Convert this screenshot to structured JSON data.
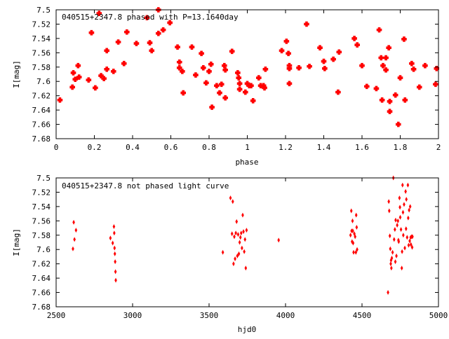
{
  "chart_data": [
    {
      "type": "scatter",
      "title": "040515+2347.8 phased with P=13.1640day",
      "xlabel": "phase",
      "ylabel": "I[mag]",
      "xlim": [
        0,
        2
      ],
      "ylim": [
        7.5,
        7.68
      ],
      "y_inverted": true,
      "grid": false,
      "marker_color": "#ff0000",
      "marker": "cross",
      "x_ticks": [
        "0",
        "0.2",
        "0.4",
        "0.6",
        "0.8",
        "1",
        "1.2",
        "1.4",
        "1.6",
        "1.8",
        "2"
      ],
      "y_ticks": [
        "7.5",
        "7.52",
        "7.54",
        "7.56",
        "7.58",
        "7.6",
        "7.62",
        "7.64",
        "7.66",
        "7.68"
      ],
      "points": [
        [
          0.02,
          7.626
        ],
        [
          0.085,
          7.608
        ],
        [
          0.09,
          7.588
        ],
        [
          0.1,
          7.597
        ],
        [
          0.115,
          7.578
        ],
        [
          0.12,
          7.594
        ],
        [
          0.17,
          7.598
        ],
        [
          0.185,
          7.532
        ],
        [
          0.205,
          7.609
        ],
        [
          0.225,
          7.505
        ],
        [
          0.235,
          7.592
        ],
        [
          0.25,
          7.596
        ],
        [
          0.265,
          7.583
        ],
        [
          0.265,
          7.557
        ],
        [
          0.3,
          7.586
        ],
        [
          0.325,
          7.545
        ],
        [
          0.355,
          7.575
        ],
        [
          0.37,
          7.531
        ],
        [
          0.42,
          7.547
        ],
        [
          0.475,
          7.511
        ],
        [
          0.49,
          7.546
        ],
        [
          0.5,
          7.557
        ],
        [
          0.535,
          7.5
        ],
        [
          0.535,
          7.533
        ],
        [
          0.56,
          7.528
        ],
        [
          0.595,
          7.518
        ],
        [
          0.635,
          7.552
        ],
        [
          0.645,
          7.573
        ],
        [
          0.645,
          7.581
        ],
        [
          0.66,
          7.586
        ],
        [
          0.665,
          7.616
        ],
        [
          0.71,
          7.552
        ],
        [
          0.73,
          7.591
        ],
        [
          0.76,
          7.561
        ],
        [
          0.77,
          7.581
        ],
        [
          0.785,
          7.602
        ],
        [
          0.8,
          7.586
        ],
        [
          0.81,
          7.576
        ],
        [
          0.815,
          7.636
        ],
        [
          0.84,
          7.606
        ],
        [
          0.855,
          7.616
        ],
        [
          0.865,
          7.604
        ],
        [
          0.88,
          7.578
        ],
        [
          0.885,
          7.584
        ],
        [
          0.885,
          7.623
        ],
        [
          0.92,
          7.558
        ],
        [
          0.95,
          7.588
        ],
        [
          0.955,
          7.595
        ],
        [
          0.96,
          7.611
        ],
        [
          0.96,
          7.603
        ],
        [
          0.99,
          7.615
        ],
        [
          1.0,
          7.603
        ],
        [
          1.01,
          7.606
        ],
        [
          1.02,
          7.606
        ],
        [
          1.03,
          7.627
        ],
        [
          1.06,
          7.595
        ],
        [
          1.07,
          7.606
        ],
        [
          1.085,
          7.606
        ],
        [
          1.09,
          7.609
        ],
        [
          1.095,
          7.583
        ],
        [
          1.18,
          7.557
        ],
        [
          1.205,
          7.544
        ],
        [
          1.215,
          7.561
        ],
        [
          1.22,
          7.578
        ],
        [
          1.22,
          7.582
        ],
        [
          1.22,
          7.603
        ],
        [
          1.27,
          7.581
        ],
        [
          1.31,
          7.52
        ],
        [
          1.325,
          7.579
        ],
        [
          1.38,
          7.553
        ],
        [
          1.4,
          7.572
        ],
        [
          1.405,
          7.582
        ],
        [
          1.45,
          7.569
        ],
        [
          1.475,
          7.615
        ],
        [
          1.48,
          7.559
        ],
        [
          1.56,
          7.54
        ],
        [
          1.575,
          7.549
        ],
        [
          1.6,
          7.578
        ],
        [
          1.625,
          7.607
        ],
        [
          1.675,
          7.61
        ],
        [
          1.69,
          7.528
        ],
        [
          1.7,
          7.567
        ],
        [
          1.705,
          7.626
        ],
        [
          1.71,
          7.578
        ],
        [
          1.725,
          7.567
        ],
        [
          1.725,
          7.584
        ],
        [
          1.74,
          7.553
        ],
        [
          1.745,
          7.628
        ],
        [
          1.745,
          7.642
        ],
        [
          1.775,
          7.619
        ],
        [
          1.79,
          7.66
        ],
        [
          1.8,
          7.595
        ],
        [
          1.82,
          7.541
        ],
        [
          1.825,
          7.626
        ],
        [
          1.86,
          7.575
        ],
        [
          1.87,
          7.583
        ],
        [
          1.9,
          7.608
        ],
        [
          1.93,
          7.578
        ],
        [
          1.985,
          7.604
        ],
        [
          1.99,
          7.582
        ]
      ]
    },
    {
      "type": "scatter",
      "title": "040515+2347.8 not phased light curve",
      "xlabel": "hjd0",
      "ylabel": "I[mag]",
      "xlim": [
        2500,
        5000
      ],
      "ylim": [
        7.5,
        7.68
      ],
      "y_inverted": true,
      "grid": false,
      "marker_color": "#ff0000",
      "marker": "diamond",
      "x_ticks": [
        "2500",
        "3000",
        "3500",
        "4000",
        "4500",
        "5000"
      ],
      "y_ticks": [
        "7.5",
        "7.52",
        "7.54",
        "7.56",
        "7.58",
        "7.6",
        "7.62",
        "7.64",
        "7.66",
        "7.68"
      ],
      "points": [
        [
          2610,
          7.599
        ],
        [
          2615,
          7.562
        ],
        [
          2620,
          7.586
        ],
        [
          2630,
          7.573
        ],
        [
          2855,
          7.584
        ],
        [
          2870,
          7.591
        ],
        [
          2878,
          7.568
        ],
        [
          2880,
          7.577
        ],
        [
          2882,
          7.598
        ],
        [
          2884,
          7.606
        ],
        [
          2886,
          7.617
        ],
        [
          2888,
          7.631
        ],
        [
          2890,
          7.643
        ],
        [
          3590,
          7.604
        ],
        [
          3640,
          7.528
        ],
        [
          3650,
          7.578
        ],
        [
          3655,
          7.533
        ],
        [
          3660,
          7.62
        ],
        [
          3665,
          7.582
        ],
        [
          3670,
          7.613
        ],
        [
          3675,
          7.577
        ],
        [
          3680,
          7.561
        ],
        [
          3685,
          7.609
        ],
        [
          3690,
          7.579
        ],
        [
          3695,
          7.606
        ],
        [
          3700,
          7.59
        ],
        [
          3705,
          7.583
        ],
        [
          3710,
          7.577
        ],
        [
          3715,
          7.598
        ],
        [
          3720,
          7.552
        ],
        [
          3725,
          7.575
        ],
        [
          3730,
          7.603
        ],
        [
          3735,
          7.586
        ],
        [
          3740,
          7.626
        ],
        [
          3745,
          7.573
        ],
        [
          3955,
          7.587
        ],
        [
          4425,
          7.58
        ],
        [
          4430,
          7.546
        ],
        [
          4432,
          7.574
        ],
        [
          4435,
          7.589
        ],
        [
          4438,
          7.56
        ],
        [
          4440,
          7.574
        ],
        [
          4442,
          7.591
        ],
        [
          4445,
          7.604
        ],
        [
          4450,
          7.578
        ],
        [
          4455,
          7.582
        ],
        [
          4460,
          7.604
        ],
        [
          4462,
          7.552
        ],
        [
          4465,
          7.569
        ],
        [
          4468,
          7.6
        ],
        [
          4670,
          7.66
        ],
        [
          4675,
          7.533
        ],
        [
          4678,
          7.546
        ],
        [
          4682,
          7.581
        ],
        [
          4685,
          7.599
        ],
        [
          4688,
          7.62
        ],
        [
          4690,
          7.615
        ],
        [
          4692,
          7.626
        ],
        [
          4695,
          7.612
        ],
        [
          4700,
          7.604
        ],
        [
          4705,
          7.5
        ],
        [
          4710,
          7.586
        ],
        [
          4715,
          7.572
        ],
        [
          4718,
          7.617
        ],
        [
          4720,
          7.559
        ],
        [
          4725,
          7.609
        ],
        [
          4730,
          7.566
        ],
        [
          4735,
          7.56
        ],
        [
          4738,
          7.587
        ],
        [
          4740,
          7.589
        ],
        [
          4745,
          7.528
        ],
        [
          4748,
          7.541
        ],
        [
          4750,
          7.555
        ],
        [
          4755,
          7.572
        ],
        [
          4760,
          7.626
        ],
        [
          4762,
          7.603
        ],
        [
          4765,
          7.51
        ],
        [
          4768,
          7.548
        ],
        [
          4770,
          7.58
        ],
        [
          4775,
          7.537
        ],
        [
          4780,
          7.598
        ],
        [
          4785,
          7.519
        ],
        [
          4788,
          7.571
        ],
        [
          4790,
          7.53
        ],
        [
          4795,
          7.583
        ],
        [
          4800,
          7.51
        ],
        [
          4802,
          7.556
        ],
        [
          4805,
          7.594
        ],
        [
          4808,
          7.545
        ],
        [
          4812,
          7.588
        ],
        [
          4815,
          7.54
        ],
        [
          4818,
          7.583
        ],
        [
          4820,
          7.593
        ],
        [
          4825,
          7.582
        ],
        [
          4828,
          7.597
        ],
        [
          4830,
          7.582
        ]
      ]
    }
  ]
}
